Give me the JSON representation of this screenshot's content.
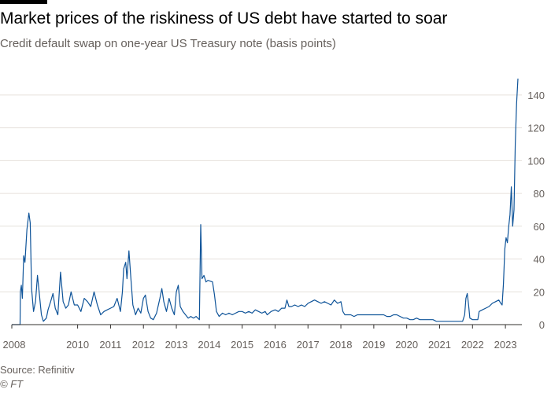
{
  "title": "Market prices of the riskiness of US debt have started to soar",
  "subtitle": "Credit default swap on one-year US Treasury note (basis points)",
  "source": "Source: Refinitiv",
  "credit": "© FT",
  "colors": {
    "line": "#0f5499",
    "grid": "#e6e1dc",
    "axis": "#33302e",
    "text": "#66605c"
  },
  "chart_data": {
    "type": "line",
    "title": "Market prices of the riskiness of US debt have started to soar",
    "subtitle": "Credit default swap on one-year US Treasury note (basis points)",
    "xlabel": "",
    "ylabel": "",
    "xlim": [
      2008.0,
      2023.5
    ],
    "ylim": [
      0,
      150
    ],
    "y_ticks": [
      0,
      20,
      40,
      60,
      80,
      100,
      120,
      140
    ],
    "x_ticks": [
      "2008",
      "2010",
      "2011",
      "2012",
      "2013",
      "2014",
      "2015",
      "2016",
      "2017",
      "2018",
      "2019",
      "2020",
      "2021",
      "2022",
      "2023"
    ],
    "x_tick_values": [
      2008,
      2010,
      2011,
      2012,
      2013,
      2014,
      2015,
      2016,
      2017,
      2018,
      2019,
      2020,
      2021,
      2022,
      2023
    ],
    "grid": true,
    "y_axis_side": "right",
    "series": [
      {
        "values": [
          [
            2008.0,
            0
          ],
          [
            2008.25,
            0
          ],
          [
            2008.26,
            20
          ],
          [
            2008.29,
            24
          ],
          [
            2008.32,
            16
          ],
          [
            2008.36,
            42
          ],
          [
            2008.4,
            38
          ],
          [
            2008.46,
            58
          ],
          [
            2008.52,
            68
          ],
          [
            2008.56,
            62
          ],
          [
            2008.6,
            22
          ],
          [
            2008.66,
            8
          ],
          [
            2008.72,
            14
          ],
          [
            2008.78,
            30
          ],
          [
            2008.82,
            22
          ],
          [
            2008.9,
            6
          ],
          [
            2008.96,
            2
          ],
          [
            2009.05,
            4
          ],
          [
            2009.1,
            9
          ],
          [
            2009.18,
            14
          ],
          [
            2009.25,
            19
          ],
          [
            2009.32,
            10
          ],
          [
            2009.4,
            6
          ],
          [
            2009.48,
            32
          ],
          [
            2009.56,
            14
          ],
          [
            2009.64,
            10
          ],
          [
            2009.72,
            12
          ],
          [
            2009.8,
            20
          ],
          [
            2009.9,
            12
          ],
          [
            2010.0,
            12
          ],
          [
            2010.1,
            8
          ],
          [
            2010.2,
            16
          ],
          [
            2010.3,
            14
          ],
          [
            2010.4,
            11
          ],
          [
            2010.5,
            20
          ],
          [
            2010.6,
            12
          ],
          [
            2010.7,
            6
          ],
          [
            2010.8,
            8
          ],
          [
            2010.9,
            9
          ],
          [
            2011.0,
            10
          ],
          [
            2011.1,
            11
          ],
          [
            2011.2,
            16
          ],
          [
            2011.3,
            8
          ],
          [
            2011.36,
            20
          ],
          [
            2011.4,
            34
          ],
          [
            2011.46,
            38
          ],
          [
            2011.5,
            28
          ],
          [
            2011.56,
            45
          ],
          [
            2011.62,
            28
          ],
          [
            2011.68,
            12
          ],
          [
            2011.76,
            6
          ],
          [
            2011.84,
            10
          ],
          [
            2011.92,
            7
          ],
          [
            2012.0,
            16
          ],
          [
            2012.06,
            18
          ],
          [
            2012.14,
            8
          ],
          [
            2012.22,
            4
          ],
          [
            2012.3,
            3
          ],
          [
            2012.4,
            7
          ],
          [
            2012.5,
            16
          ],
          [
            2012.56,
            22
          ],
          [
            2012.62,
            14
          ],
          [
            2012.7,
            8
          ],
          [
            2012.78,
            16
          ],
          [
            2012.86,
            10
          ],
          [
            2012.94,
            6
          ],
          [
            2013.0,
            20
          ],
          [
            2013.06,
            24
          ],
          [
            2013.12,
            11
          ],
          [
            2013.2,
            8
          ],
          [
            2013.28,
            6
          ],
          [
            2013.36,
            4
          ],
          [
            2013.44,
            5
          ],
          [
            2013.52,
            4
          ],
          [
            2013.6,
            5
          ],
          [
            2013.7,
            3
          ],
          [
            2013.74,
            61
          ],
          [
            2013.78,
            28
          ],
          [
            2013.84,
            30
          ],
          [
            2013.9,
            26
          ],
          [
            2013.96,
            27
          ],
          [
            2014.1,
            26
          ],
          [
            2014.16,
            18
          ],
          [
            2014.22,
            8
          ],
          [
            2014.3,
            5
          ],
          [
            2014.4,
            7
          ],
          [
            2014.5,
            6
          ],
          [
            2014.6,
            7
          ],
          [
            2014.7,
            6
          ],
          [
            2014.8,
            7
          ],
          [
            2014.9,
            8
          ],
          [
            2015.0,
            8
          ],
          [
            2015.1,
            7
          ],
          [
            2015.2,
            8
          ],
          [
            2015.3,
            7
          ],
          [
            2015.4,
            9
          ],
          [
            2015.5,
            8
          ],
          [
            2015.6,
            7
          ],
          [
            2015.7,
            8
          ],
          [
            2015.76,
            6
          ],
          [
            2015.82,
            7
          ],
          [
            2015.88,
            8
          ],
          [
            2016.0,
            9
          ],
          [
            2016.1,
            8
          ],
          [
            2016.2,
            10
          ],
          [
            2016.3,
            10
          ],
          [
            2016.36,
            15
          ],
          [
            2016.42,
            11
          ],
          [
            2016.5,
            11
          ],
          [
            2016.6,
            12
          ],
          [
            2016.7,
            11
          ],
          [
            2016.8,
            12
          ],
          [
            2016.9,
            11
          ],
          [
            2017.0,
            13
          ],
          [
            2017.1,
            14
          ],
          [
            2017.2,
            15
          ],
          [
            2017.3,
            14
          ],
          [
            2017.4,
            13
          ],
          [
            2017.5,
            14
          ],
          [
            2017.6,
            13
          ],
          [
            2017.7,
            12
          ],
          [
            2017.8,
            15
          ],
          [
            2017.9,
            13
          ],
          [
            2018.0,
            14
          ],
          [
            2018.06,
            8
          ],
          [
            2018.12,
            6
          ],
          [
            2018.2,
            6
          ],
          [
            2018.3,
            6
          ],
          [
            2018.4,
            5
          ],
          [
            2018.5,
            6
          ],
          [
            2018.6,
            6
          ],
          [
            2018.7,
            6
          ],
          [
            2018.8,
            6
          ],
          [
            2018.9,
            6
          ],
          [
            2019.0,
            6
          ],
          [
            2019.1,
            6
          ],
          [
            2019.2,
            6
          ],
          [
            2019.3,
            6
          ],
          [
            2019.4,
            5
          ],
          [
            2019.5,
            5
          ],
          [
            2019.6,
            6
          ],
          [
            2019.7,
            6
          ],
          [
            2019.8,
            5
          ],
          [
            2019.9,
            4
          ],
          [
            2020.0,
            4
          ],
          [
            2020.1,
            3
          ],
          [
            2020.2,
            3
          ],
          [
            2020.3,
            4
          ],
          [
            2020.4,
            3
          ],
          [
            2020.5,
            3
          ],
          [
            2020.6,
            3
          ],
          [
            2020.7,
            3
          ],
          [
            2020.8,
            3
          ],
          [
            2020.9,
            2
          ],
          [
            2021.0,
            2
          ],
          [
            2021.1,
            2
          ],
          [
            2021.2,
            2
          ],
          [
            2021.3,
            2
          ],
          [
            2021.4,
            2
          ],
          [
            2021.5,
            2
          ],
          [
            2021.6,
            2
          ],
          [
            2021.7,
            2
          ],
          [
            2021.76,
            6
          ],
          [
            2021.8,
            16
          ],
          [
            2021.84,
            19
          ],
          [
            2021.88,
            12
          ],
          [
            2021.92,
            4
          ],
          [
            2022.0,
            3
          ],
          [
            2022.1,
            3
          ],
          [
            2022.16,
            3
          ],
          [
            2022.2,
            8
          ],
          [
            2022.3,
            9
          ],
          [
            2022.4,
            10
          ],
          [
            2022.5,
            11
          ],
          [
            2022.6,
            13
          ],
          [
            2022.7,
            14
          ],
          [
            2022.8,
            15
          ],
          [
            2022.86,
            13
          ],
          [
            2022.9,
            12
          ],
          [
            2022.94,
            25
          ],
          [
            2022.98,
            46
          ],
          [
            2023.02,
            53
          ],
          [
            2023.06,
            50
          ],
          [
            2023.1,
            60
          ],
          [
            2023.14,
            67
          ],
          [
            2023.18,
            84
          ],
          [
            2023.22,
            60
          ],
          [
            2023.26,
            70
          ],
          [
            2023.3,
            110
          ],
          [
            2023.34,
            135
          ],
          [
            2023.38,
            150
          ]
        ]
      }
    ]
  }
}
